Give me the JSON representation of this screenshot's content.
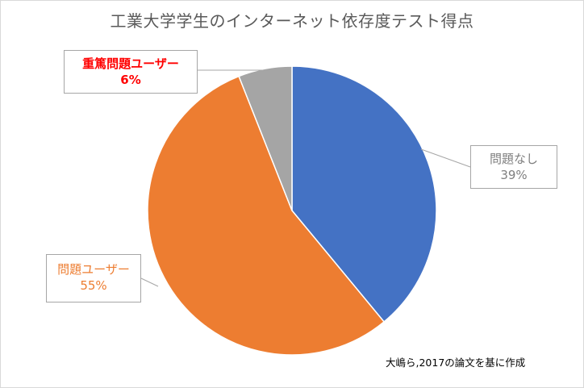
{
  "chart_data": {
    "type": "pie",
    "title": "工業大学学生のインターネット依存度テスト得点",
    "slices": [
      {
        "label": "問題なし",
        "value": 39,
        "display": "39%",
        "color": "#4472C4",
        "label_color": "#7F7F7F"
      },
      {
        "label": "問題ユーザー",
        "value": 55,
        "display": "55%",
        "color": "#ED7D31",
        "label_color": "#ED7D31"
      },
      {
        "label": "重篤問題ユーザー",
        "value": 6,
        "display": "6%",
        "color": "#A5A5A5",
        "label_color": "#FF0000"
      }
    ],
    "start": "12 o'clock, clockwise",
    "annotation": "大嶋ら,2017の論文を基に作成"
  }
}
